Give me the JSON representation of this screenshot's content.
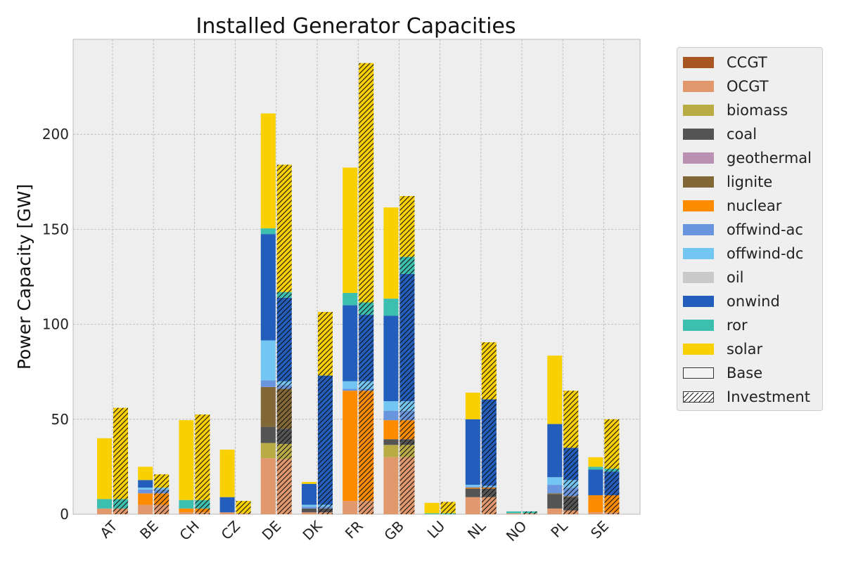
{
  "chart_data": {
    "type": "bar",
    "title": "Installed Generator Capacities",
    "ylabel": "Power Capacity [GW]",
    "xlabel": "",
    "ylim": [
      0,
      250
    ],
    "yticks": [
      0,
      50,
      100,
      150,
      200
    ],
    "grid": true,
    "legend_placement": "outside-top-right",
    "categories": [
      "AT",
      "BE",
      "CH",
      "CZ",
      "DE",
      "DK",
      "FR",
      "GB",
      "LU",
      "NL",
      "NO",
      "PL",
      "SE"
    ],
    "scenarios": [
      "Base",
      "Investment"
    ],
    "carrier_colors": {
      "CCGT": "#a85522",
      "OCGT": "#e0986c",
      "biomass": "#baac44",
      "coal": "#545454",
      "geothermal": "#ba91b1",
      "lignite": "#826837",
      "nuclear": "#ff8c00",
      "offwind-ac": "#6895dd",
      "offwind-dc": "#74c6f2",
      "oil": "#c9c9c9",
      "onwind": "#235ebc",
      "ror": "#3dbfb0",
      "solar": "#f9d002"
    },
    "series": [
      {
        "name": "CCGT",
        "base": [
          0,
          0,
          0,
          0,
          0,
          0,
          0,
          0,
          0,
          0,
          0,
          0,
          0
        ],
        "investment": [
          0,
          0,
          0,
          0,
          0,
          0,
          0,
          0,
          0,
          0,
          0,
          0,
          0
        ]
      },
      {
        "name": "OCGT",
        "base": [
          3,
          5,
          1,
          1,
          29.5,
          1,
          7,
          30,
          0,
          9,
          0.5,
          3,
          1
        ],
        "investment": [
          3,
          5,
          1,
          0.5,
          29,
          1,
          7,
          30,
          0,
          9,
          0.5,
          2,
          1
        ]
      },
      {
        "name": "biomass",
        "base": [
          0,
          0,
          0,
          0,
          8,
          0,
          0,
          6.5,
          0,
          0,
          0,
          0,
          0
        ],
        "investment": [
          0,
          0,
          0,
          0,
          8,
          0,
          0,
          6.5,
          0,
          0,
          0,
          0,
          0
        ]
      },
      {
        "name": "coal",
        "base": [
          0,
          0,
          0,
          0,
          8.5,
          2,
          0,
          3,
          0,
          4.5,
          0,
          7.5,
          0
        ],
        "investment": [
          0,
          0,
          0,
          0,
          8,
          2,
          0,
          3,
          0,
          4.5,
          0,
          7,
          0
        ]
      },
      {
        "name": "geothermal",
        "base": [
          0,
          0,
          0,
          0,
          0,
          0,
          0,
          0,
          0,
          0,
          0,
          0,
          0
        ],
        "investment": [
          0,
          0,
          0,
          0,
          0,
          0,
          0,
          0,
          0,
          0,
          0,
          0,
          0
        ]
      },
      {
        "name": "lignite",
        "base": [
          0,
          0,
          0,
          0,
          21,
          0,
          0,
          0,
          0,
          0,
          0,
          0.5,
          0
        ],
        "investment": [
          0,
          0,
          0,
          0,
          21,
          0,
          0,
          0,
          0,
          0,
          0,
          0.5,
          0
        ]
      },
      {
        "name": "nuclear",
        "base": [
          0,
          6,
          2,
          0,
          0,
          0,
          58,
          10,
          0,
          0.5,
          0,
          0,
          9
        ],
        "investment": [
          0,
          6,
          2,
          0,
          0,
          0,
          58,
          10,
          0,
          0.5,
          0,
          0,
          9
        ]
      },
      {
        "name": "offwind-ac",
        "base": [
          0,
          2,
          0,
          0,
          3.5,
          1,
          1,
          5,
          0,
          0.5,
          0,
          4.5,
          0
        ],
        "investment": [
          0,
          2,
          0,
          0,
          2,
          1,
          1,
          5,
          0,
          0.5,
          0,
          4.5,
          0
        ]
      },
      {
        "name": "offwind-dc",
        "base": [
          0,
          1,
          0,
          0,
          21,
          1,
          4,
          5,
          0,
          1,
          0,
          4,
          0
        ],
        "investment": [
          0,
          1,
          0,
          0,
          2,
          1,
          4,
          5,
          0,
          0.5,
          0,
          4,
          0
        ]
      },
      {
        "name": "oil",
        "base": [
          0,
          0,
          0,
          0,
          0,
          0,
          0,
          0,
          0,
          0,
          0,
          0,
          0
        ],
        "investment": [
          0,
          0,
          0,
          0,
          0,
          0,
          0,
          0,
          0,
          0,
          0,
          0,
          0
        ]
      },
      {
        "name": "onwind",
        "base": [
          0,
          4,
          0,
          8,
          56,
          11,
          40,
          45,
          0,
          34.5,
          0,
          28,
          13.5
        ],
        "investment": [
          0,
          0,
          0,
          0,
          44,
          68,
          35,
          67,
          0,
          45.5,
          0,
          17,
          12.5
        ]
      },
      {
        "name": "ror",
        "base": [
          5,
          0,
          4.5,
          0,
          3,
          0,
          6.5,
          9,
          0.5,
          0,
          1,
          0,
          1.5
        ],
        "investment": [
          5,
          0,
          4.5,
          0,
          3,
          0,
          6.5,
          9,
          0.5,
          0,
          1,
          0,
          1.5
        ]
      },
      {
        "name": "solar",
        "base": [
          32,
          7,
          42,
          25,
          60.5,
          1,
          66,
          48,
          5.5,
          14,
          0,
          36,
          5
        ],
        "investment": [
          48,
          7,
          45,
          6.5,
          67,
          33.5,
          126,
          32,
          6,
          30,
          0,
          30,
          26
        ]
      }
    ],
    "legend_entries": [
      "CCGT",
      "OCGT",
      "biomass",
      "coal",
      "geothermal",
      "lignite",
      "nuclear",
      "offwind-ac",
      "offwind-dc",
      "oil",
      "onwind",
      "ror",
      "solar",
      "Base",
      "Investment"
    ]
  }
}
